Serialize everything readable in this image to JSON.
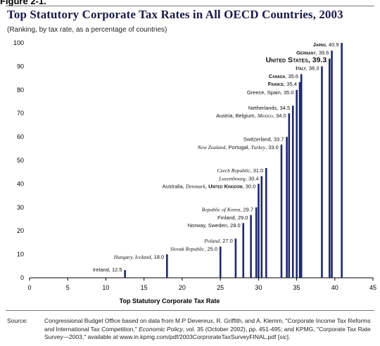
{
  "figure_label": "Figure 2-1.",
  "title": "Top Statutory Corporate Tax Rates in All OECD Countries, 2003",
  "subtitle": "(Ranking, by tax rate, as a percentage of countries)",
  "source": {
    "label": "Source:",
    "text_1": "Congressional Budget Office based on data from M.P Devereux, R. Griffith, and A. Klemm, \"Corporate Income Tax Reforms and International Tax Competition,\" ",
    "journal": "Economic Policy",
    "text_2": ", vol. 35 (October 2002), pp. 451-495; and KPMG, \"Corporate Tax Rate Survey—2003,\" available at www.in.kpmg.com/pdf/2003CorprorateTaxSurveyFINAL.pdf [",
    "sic": "sic",
    "text_3": "]."
  },
  "chart_data": {
    "type": "bar",
    "xlabel": "Top Statutory Corporate Tax Rate",
    "ylabel": "",
    "xlim": [
      0,
      45
    ],
    "ylim": [
      0,
      100
    ],
    "xticks": [
      0,
      5,
      10,
      15,
      20,
      25,
      30,
      35,
      40,
      45
    ],
    "yticks": [
      0,
      10,
      20,
      30,
      40,
      50,
      60,
      70,
      80,
      90,
      100
    ],
    "bars": [
      {
        "x": 12.5,
        "y": 3.3
      },
      {
        "x": 18.0,
        "y": 10.0
      },
      {
        "x": 25.0,
        "y": 13.3
      },
      {
        "x": 27.0,
        "y": 16.7
      },
      {
        "x": 28.0,
        "y": 23.3
      },
      {
        "x": 29.0,
        "y": 26.7
      },
      {
        "x": 29.7,
        "y": 30.0
      },
      {
        "x": 30.0,
        "y": 40.0
      },
      {
        "x": 30.4,
        "y": 43.3
      },
      {
        "x": 31.0,
        "y": 46.7
      },
      {
        "x": 33.0,
        "y": 56.7
      },
      {
        "x": 33.7,
        "y": 60.0
      },
      {
        "x": 34.0,
        "y": 70.0
      },
      {
        "x": 34.5,
        "y": 73.3
      },
      {
        "x": 35.0,
        "y": 80.0
      },
      {
        "x": 35.4,
        "y": 83.3
      },
      {
        "x": 35.6,
        "y": 86.7
      },
      {
        "x": 38.3,
        "y": 90.0
      },
      {
        "x": 39.3,
        "y": 93.3
      },
      {
        "x": 39.6,
        "y": 96.7
      },
      {
        "x": 40.9,
        "y": 100.0
      }
    ],
    "annotations": [
      {
        "y": 3.6,
        "parts": [
          {
            "t": "Ireland, 12.5"
          }
        ]
      },
      {
        "y": 9.0,
        "parts": [
          {
            "t": "Hungary, Iceland",
            "i": true
          },
          {
            "t": ", 18.0"
          }
        ]
      },
      {
        "y": 12.5,
        "parts": [
          {
            "t": "Slovak Republic",
            "i": true
          },
          {
            "t": ", 25.0"
          }
        ]
      },
      {
        "y": 15.8,
        "parts": [
          {
            "t": "Poland",
            "i": true
          },
          {
            "t": ", 27.0"
          }
        ]
      },
      {
        "y": 22.4,
        "parts": [
          {
            "t": "Norway, Sweden, 28.0"
          }
        ]
      },
      {
        "y": 25.8,
        "parts": [
          {
            "t": "Finland, 29.0"
          }
        ]
      },
      {
        "y": 29.2,
        "parts": [
          {
            "t": "Republic of Korea",
            "i": true
          },
          {
            "t": ", 29.7"
          }
        ]
      },
      {
        "y": 39.0,
        "parts": [
          {
            "t": "Australia, "
          },
          {
            "t": "Denmark",
            "i": true
          },
          {
            "t": ", "
          },
          {
            "t": "United Kingdom",
            "sc": true
          },
          {
            "t": ", 30.0"
          }
        ]
      },
      {
        "y": 42.4,
        "parts": [
          {
            "t": "Luxembourg",
            "i": true
          },
          {
            "t": ", 30.4"
          }
        ]
      },
      {
        "y": 45.8,
        "parts": [
          {
            "t": "Czech Republic",
            "i": true
          },
          {
            "t": ", 31.0"
          }
        ]
      },
      {
        "y": 55.7,
        "parts": [
          {
            "t": "New Zealand",
            "i": true
          },
          {
            "t": ", Portugal, "
          },
          {
            "t": "Turkey",
            "i": true
          },
          {
            "t": ", 33.0"
          }
        ]
      },
      {
        "y": 59.1,
        "parts": [
          {
            "t": "Switzerland, 33.7"
          }
        ]
      },
      {
        "y": 69.1,
        "parts": [
          {
            "t": "Austria, Belgium, "
          },
          {
            "t": "Mexico",
            "i": true
          },
          {
            "t": ", 34.0"
          }
        ]
      },
      {
        "y": 72.5,
        "parts": [
          {
            "t": "Netherlands, 34.5"
          }
        ]
      },
      {
        "y": 79.0,
        "parts": [
          {
            "t": "Greece, Spain, 35.0"
          }
        ]
      },
      {
        "y": 82.6,
        "parts": [
          {
            "t": "France",
            "sc": true
          },
          {
            "t": ", 35.4"
          }
        ]
      },
      {
        "y": 86.0,
        "parts": [
          {
            "t": "Canada",
            "sc": true
          },
          {
            "t": ", 35.6"
          }
        ]
      },
      {
        "y": 89.3,
        "parts": [
          {
            "t": "Italy",
            "sc": true
          },
          {
            "t": ", 38.3"
          }
        ]
      },
      {
        "y": 92.6,
        "big": true,
        "parts": [
          {
            "t": "United States",
            "sc": true
          },
          {
            "t": ", 39.3"
          }
        ]
      },
      {
        "y": 96.0,
        "parts": [
          {
            "t": "Germany",
            "sc": true
          },
          {
            "t": ", 39.6"
          }
        ]
      },
      {
        "y": 99.4,
        "parts": [
          {
            "t": "Japan",
            "sc": true
          },
          {
            "t": ", 40.9"
          }
        ]
      }
    ]
  }
}
